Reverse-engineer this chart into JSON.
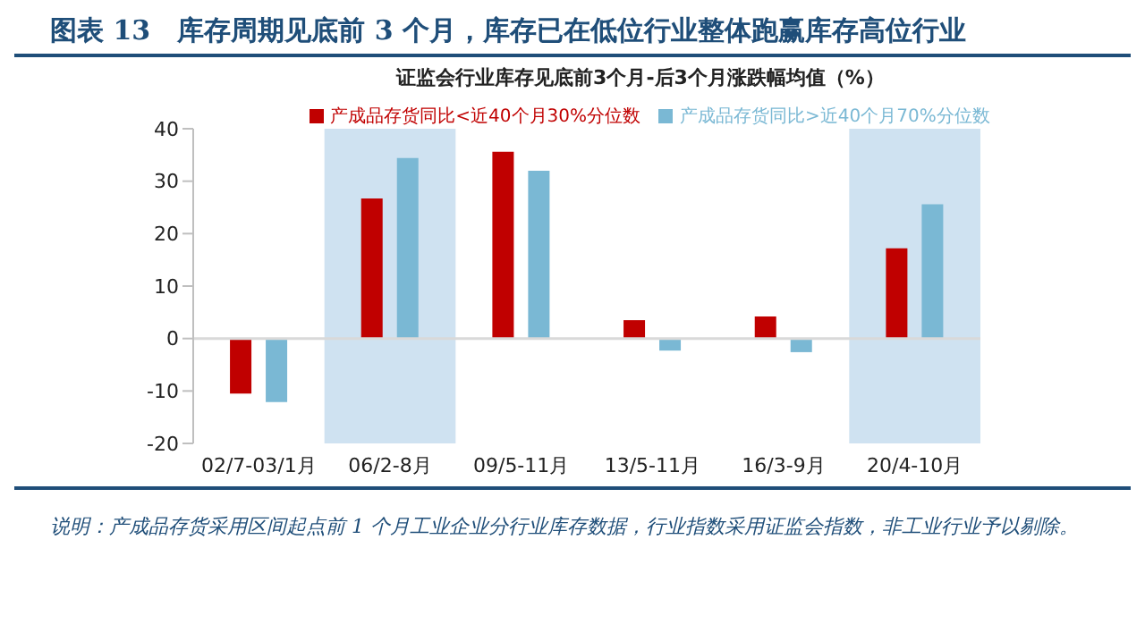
{
  "chart_data": {
    "type": "bar",
    "title": "图表 13　库存周期见底前 3 个月，库存已在低位行业整体跑赢库存高位行业",
    "subtitle": "证监会行业库存见底前3个月-后3个月涨跌幅均值（%）",
    "categories": [
      "02/7-03/1月",
      "06/2-8月",
      "09/5-11月",
      "13/5-11月",
      "16/3-9月",
      "20/4-10月"
    ],
    "series": [
      {
        "name": "产成品存货同比<近40个月30%分位数",
        "color": "#c00000",
        "values": [
          -10.5,
          26.7,
          35.6,
          3.5,
          4.2,
          17.2
        ]
      },
      {
        "name": "产成品存货同比>近40个月70%分位数",
        "color": "#7ab8d4",
        "values": [
          -12.1,
          34.4,
          32.0,
          -2.3,
          -2.6,
          25.6
        ]
      }
    ],
    "ylim": [
      -20,
      40
    ],
    "yticks": [
      -20,
      -10,
      0,
      10,
      20,
      30,
      40
    ],
    "grid": false,
    "legend": "top",
    "ref_lines": [
      {
        "axis": "y",
        "value": 0,
        "color": "#d9d9d9"
      }
    ],
    "bands": [
      {
        "axis": "x",
        "from": "06/2-8月",
        "to": "06/2-8月",
        "color": "#cfe2f1"
      },
      {
        "axis": "x",
        "from": "20/4-10月",
        "to": "20/4-10月",
        "color": "#cfe2f1"
      }
    ],
    "annotations": [
      "说明：产成品存货采用区间起点前 1 个月工业企业分行业库存数据，行业指数采用证监会指数，非工业行业予以剔除。"
    ]
  }
}
